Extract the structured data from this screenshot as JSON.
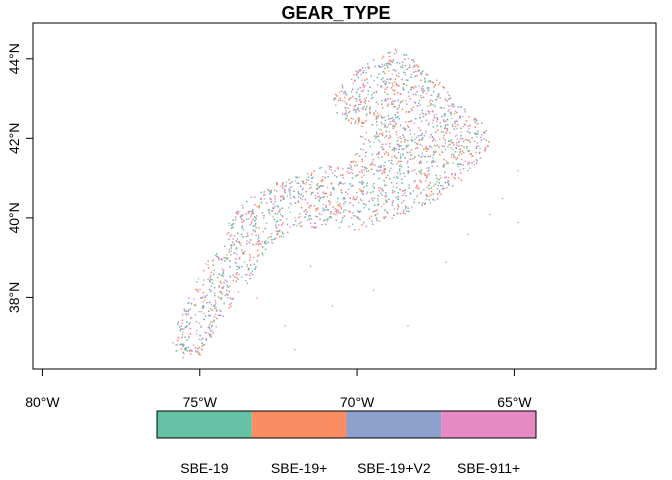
{
  "title": "GEAR_TYPE",
  "chart_data": {
    "type": "scatter",
    "map": true,
    "xlim": [
      -80.3,
      -60.5
    ],
    "ylim": [
      36.2,
      44.9
    ],
    "x_ticks": [
      {
        "value": -80,
        "label": "80°W"
      },
      {
        "value": -75,
        "label": "75°W"
      },
      {
        "value": -70,
        "label": "70°W"
      },
      {
        "value": -65,
        "label": "65°W"
      }
    ],
    "y_ticks": [
      {
        "value": 38,
        "label": "38°N"
      },
      {
        "value": 40,
        "label": "40°N"
      },
      {
        "value": 42,
        "label": "42°N"
      },
      {
        "value": 44,
        "label": "44°N"
      }
    ],
    "legend": {
      "placement": "bottom",
      "entries": [
        {
          "label": "SBE-19",
          "color": "#66C2A5"
        },
        {
          "label": "SBE-19+",
          "color": "#FC8D62"
        },
        {
          "label": "SBE-19+V2",
          "color": "#8DA0CB"
        },
        {
          "label": "SBE-911+",
          "color": "#E78AC3"
        }
      ]
    },
    "region_outline_lonlat": [
      [
        -75.8,
        36.5
      ],
      [
        -75.0,
        36.5
      ],
      [
        -74.3,
        37.5
      ],
      [
        -73.3,
        38.6
      ],
      [
        -72.8,
        39.3
      ],
      [
        -72.0,
        39.7
      ],
      [
        -71.0,
        39.8
      ],
      [
        -70.0,
        39.7
      ],
      [
        -68.8,
        40.0
      ],
      [
        -67.6,
        40.4
      ],
      [
        -66.5,
        41.1
      ],
      [
        -65.8,
        41.8
      ],
      [
        -65.9,
        42.3
      ],
      [
        -66.8,
        42.9
      ],
      [
        -67.6,
        43.6
      ],
      [
        -68.7,
        44.3
      ],
      [
        -69.5,
        44.0
      ],
      [
        -70.3,
        43.6
      ],
      [
        -70.8,
        43.0
      ],
      [
        -70.6,
        42.5
      ],
      [
        -69.9,
        42.3
      ],
      [
        -69.9,
        41.9
      ],
      [
        -70.1,
        41.6
      ],
      [
        -70.4,
        41.3
      ],
      [
        -71.0,
        41.35
      ],
      [
        -71.7,
        41.1
      ],
      [
        -72.6,
        40.9
      ],
      [
        -73.5,
        40.5
      ],
      [
        -74.1,
        40.0
      ],
      [
        -74.2,
        39.6
      ],
      [
        -74.8,
        38.9
      ],
      [
        -75.2,
        38.4
      ],
      [
        -75.6,
        37.6
      ],
      [
        -75.9,
        37.0
      ]
    ],
    "scatter_outliers_lonlat": [
      [
        -72.3,
        37.3
      ],
      [
        -73.2,
        38.0
      ],
      [
        -69.5,
        38.2
      ],
      [
        -68.4,
        37.3
      ],
      [
        -66.5,
        39.6
      ],
      [
        -65.4,
        40.5
      ],
      [
        -64.9,
        39.9
      ],
      [
        -64.9,
        41.2
      ],
      [
        -71.5,
        38.8
      ],
      [
        -70.8,
        37.8
      ],
      [
        -72.0,
        36.7
      ],
      [
        -67.2,
        38.9
      ],
      [
        -65.8,
        40.1
      ]
    ]
  }
}
